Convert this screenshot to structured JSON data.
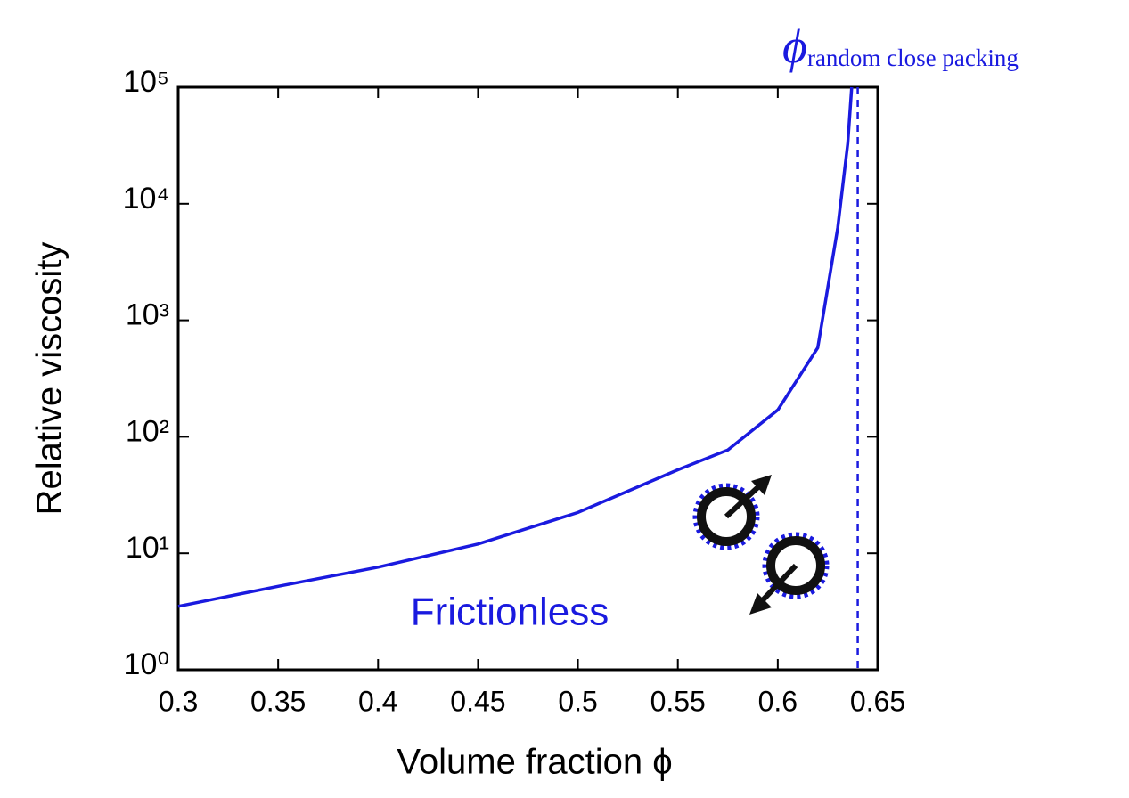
{
  "chart_data": {
    "type": "line",
    "xlabel": "Volume fraction ϕ",
    "ylabel": "Relative viscosity",
    "x": [
      0.3,
      0.35,
      0.4,
      0.45,
      0.5,
      0.55,
      0.575,
      0.6,
      0.62,
      0.63,
      0.635,
      0.637
    ],
    "series": [
      {
        "name": "Frictionless",
        "color": "#1a1adf",
        "values": [
          3.5,
          5.2,
          7.6,
          12,
          22.4,
          52,
          77,
          170,
          580,
          6200,
          33000,
          100000
        ]
      }
    ],
    "xlim": [
      0.3,
      0.65
    ],
    "xticks": [
      0.3,
      0.35,
      0.4,
      0.45,
      0.5,
      0.55,
      0.6,
      0.65
    ],
    "ylim": [
      1,
      100000
    ],
    "yscale": "log",
    "yticks": [
      {
        "value": 1,
        "label": "10⁰"
      },
      {
        "value": 10,
        "label": "10¹"
      },
      {
        "value": 100,
        "label": "10²"
      },
      {
        "value": 1000,
        "label": "10³"
      },
      {
        "value": 10000,
        "label": "10⁴"
      },
      {
        "value": 100000,
        "label": "10⁵"
      }
    ],
    "reference_line": {
      "x": 0.64,
      "symbol": "ϕ",
      "subscript": "random close packing",
      "color": "#1a1adf"
    }
  }
}
